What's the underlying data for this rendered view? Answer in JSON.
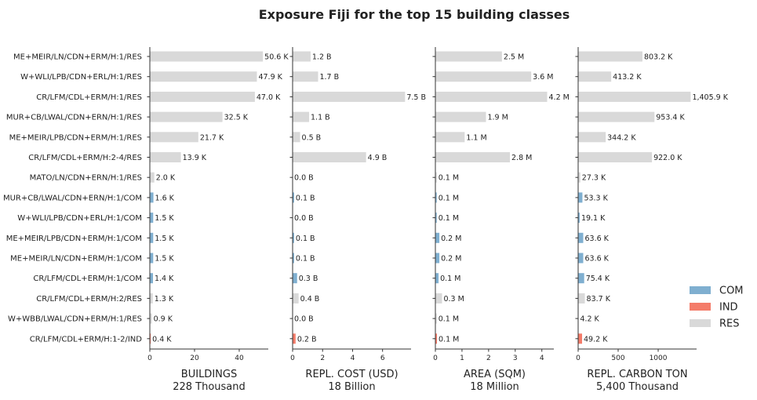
{
  "chart_data": {
    "type": "bar",
    "orientation": "horizontal",
    "title": "Exposure Fiji for the top 15 building classes",
    "categories": [
      "ME+MEIR/LN/CDN+ERM/H:1/RES",
      "W+WLI/LPB/CDN+ERL/H:1/RES",
      "CR/LFM/CDL+ERM/H:1/RES",
      "MUR+CB/LWAL/CDN+ERN/H:1/RES",
      "ME+MEIR/LPB/CDN+ERM/H:1/RES",
      "CR/LFM/CDL+ERM/H:2-4/RES",
      "MATO/LN/CDN+ERN/H:1/RES",
      "MUR+CB/LWAL/CDN+ERN/H:1/COM",
      "W+WLI/LPB/CDN+ERL/H:1/COM",
      "ME+MEIR/LPB/CDN+ERM/H:1/COM",
      "ME+MEIR/LN/CDN+ERM/H:1/COM",
      "CR/LFM/CDL+ERM/H:1/COM",
      "CR/LFM/CDL+ERM/H:2/RES",
      "W+WBB/LWAL/CDN+ERM/H:1/RES",
      "CR/LFM/CDL+ERM/H:1-2/IND"
    ],
    "occupancy": [
      "RES",
      "RES",
      "RES",
      "RES",
      "RES",
      "RES",
      "RES",
      "COM",
      "COM",
      "COM",
      "COM",
      "COM",
      "RES",
      "RES",
      "IND"
    ],
    "colors": {
      "COM": "#7fafd0",
      "IND": "#f47c6a",
      "RES": "#d9d9d9"
    },
    "legend": {
      "position": "right",
      "entries": [
        {
          "label": "COM",
          "key": "COM"
        },
        {
          "label": "IND",
          "key": "IND"
        },
        {
          "label": "RES",
          "key": "RES"
        }
      ]
    },
    "panels": [
      {
        "xlabel": "BUILDINGS",
        "subtitle": "228 Thousand",
        "unit": "thousand",
        "xlim": [
          0,
          53
        ],
        "ticks": [
          0,
          20,
          40
        ],
        "tick_labels": [
          "0",
          "20",
          "40"
        ],
        "values": [
          50.6,
          47.9,
          47.0,
          32.5,
          21.7,
          13.9,
          2.0,
          1.6,
          1.5,
          1.5,
          1.5,
          1.4,
          1.3,
          0.9,
          0.4
        ],
        "labels": [
          "50.6 K",
          "47.9 K",
          "47.0 K",
          "32.5 K",
          "21.7 K",
          "13.9 K",
          "2.0 K",
          "1.6 K",
          "1.5 K",
          "1.5 K",
          "1.5 K",
          "1.4 K",
          "1.3 K",
          "0.9 K",
          "0.4 K"
        ]
      },
      {
        "xlabel": "REPL. COST (USD)",
        "subtitle": "18 Billion",
        "unit": "billion",
        "xlim": [
          0,
          7.9
        ],
        "ticks": [
          0,
          2,
          4,
          6
        ],
        "tick_labels": [
          "0",
          "2",
          "4",
          "6"
        ],
        "values": [
          1.2,
          1.7,
          7.5,
          1.1,
          0.5,
          4.9,
          0.0,
          0.1,
          0.0,
          0.1,
          0.1,
          0.3,
          0.4,
          0.0,
          0.2
        ],
        "labels": [
          "1.2 B",
          "1.7 B",
          "7.5 B",
          "1.1 B",
          "0.5 B",
          "4.9 B",
          "0.0 B",
          "0.1 B",
          "0.0 B",
          "0.1 B",
          "0.1 B",
          "0.3 B",
          "0.4 B",
          "0.0 B",
          "0.2 B"
        ]
      },
      {
        "xlabel": "AREA (SQM)",
        "subtitle": "18 Million",
        "unit": "million",
        "xlim": [
          0,
          4.45
        ],
        "ticks": [
          0,
          1,
          2,
          3,
          4
        ],
        "tick_labels": [
          "0",
          "1",
          "2",
          "3",
          "4"
        ],
        "values": [
          2.5,
          3.6,
          4.2,
          1.9,
          1.1,
          2.8,
          0.05,
          0.05,
          0.05,
          0.15,
          0.15,
          0.12,
          0.25,
          0.05,
          0.06
        ],
        "labels": [
          "2.5 M",
          "3.6 M",
          "4.2 M",
          "1.9 M",
          "1.1 M",
          "2.8 M",
          "0.1 M",
          "0.1 M",
          "0.1 M",
          "0.2 M",
          "0.2 M",
          "0.1 M",
          "0.3 M",
          "0.1 M",
          "0.1 M"
        ]
      },
      {
        "xlabel": "REPL. CARBON TON",
        "subtitle": "5,400 Thousand",
        "unit": "thousand",
        "xlim": [
          0,
          1480
        ],
        "ticks": [
          0,
          500,
          1000
        ],
        "tick_labels": [
          "0",
          "500",
          "1000"
        ],
        "values": [
          803.2,
          413.2,
          1405.9,
          953.4,
          344.2,
          922.0,
          27.3,
          53.3,
          19.1,
          63.6,
          63.6,
          75.4,
          83.7,
          4.2,
          49.2
        ],
        "labels": [
          "803.2 K",
          "413.2 K",
          "1,405.9 K",
          "953.4 K",
          "344.2 K",
          "922.0 K",
          "27.3 K",
          "53.3 K",
          "19.1 K",
          "63.6 K",
          "63.6 K",
          "75.4 K",
          "83.7 K",
          "4.2 K",
          "49.2 K"
        ]
      }
    ]
  }
}
